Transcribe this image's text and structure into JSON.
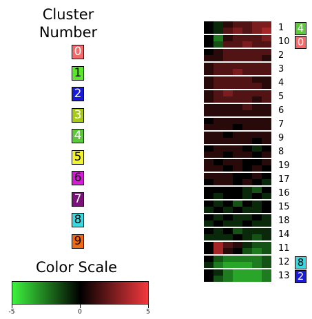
{
  "legend": {
    "title_line1": "Cluster",
    "title_line2": "Number",
    "clusters": [
      {
        "label": "0",
        "bg": "#f26a6a",
        "fg": "#ffffff"
      },
      {
        "label": "1",
        "bg": "#5ce62e",
        "fg": "#000000"
      },
      {
        "label": "2",
        "bg": "#1a1ad9",
        "fg": "#ffffff"
      },
      {
        "label": "3",
        "bg": "#a8c81a",
        "fg": "#ffffff"
      },
      {
        "label": "4",
        "bg": "#5cc83a",
        "fg": "#ffffff"
      },
      {
        "label": "5",
        "bg": "#f2f22e",
        "fg": "#000000"
      },
      {
        "label": "6",
        "bg": "#d61ad6",
        "fg": "#000000"
      },
      {
        "label": "7",
        "bg": "#7a127a",
        "fg": "#ffffff"
      },
      {
        "label": "8",
        "bg": "#3ad9e0",
        "fg": "#000000"
      },
      {
        "label": "9",
        "bg": "#f06a12",
        "fg": "#000000"
      }
    ]
  },
  "color_scale": {
    "title": "Color Scale",
    "min_label": "-5",
    "mid_label": "0",
    "max_label": "5",
    "low_color": "#3df23d",
    "mid_color": "#000000",
    "high_color": "#f2383d"
  },
  "chart_data": {
    "type": "heatmap",
    "value_range": [
      -5,
      5
    ],
    "rows": [
      {
        "label": "1",
        "cluster_badge": "4",
        "badge_bg": "#5cc83a",
        "badge_fg": "#ffffff",
        "values": [
          [
            0,
            -1,
            1,
            2,
            2,
            3,
            3
          ],
          [
            0,
            -1,
            2,
            3,
            2,
            3,
            4
          ]
        ]
      },
      {
        "label": "10",
        "cluster_badge": "0",
        "badge_bg": "#f26a6a",
        "badge_fg": "#ffffff",
        "values": [
          [
            0,
            -3,
            1,
            2,
            2,
            2,
            3
          ],
          [
            0,
            -2,
            2,
            2,
            3,
            2,
            2
          ]
        ]
      },
      {
        "label": "2",
        "values": [
          [
            0,
            1,
            2,
            2,
            2,
            2,
            2
          ],
          [
            1,
            1,
            2,
            2,
            2,
            2,
            1
          ]
        ]
      },
      {
        "label": "3",
        "values": [
          [
            1,
            2,
            2,
            2,
            2,
            2,
            2
          ],
          [
            1,
            2,
            2,
            3,
            2,
            2,
            2
          ]
        ]
      },
      {
        "label": "4",
        "values": [
          [
            1,
            2,
            2,
            2,
            2,
            1,
            1
          ],
          [
            1,
            2,
            2,
            2,
            2,
            2,
            1
          ]
        ]
      },
      {
        "label": "5",
        "values": [
          [
            1,
            2,
            3,
            2,
            2,
            2,
            2
          ],
          [
            1,
            2,
            2,
            2,
            2,
            1,
            2
          ]
        ]
      },
      {
        "label": "6",
        "values": [
          [
            1,
            1,
            1,
            1,
            2,
            1,
            1
          ],
          [
            1,
            1,
            1,
            1,
            1,
            1,
            1
          ]
        ]
      },
      {
        "label": "7",
        "values": [
          [
            0,
            1,
            1,
            1,
            1,
            1,
            1
          ],
          [
            1,
            1,
            1,
            0,
            1,
            1,
            1
          ]
        ]
      },
      {
        "label": "9",
        "values": [
          [
            1,
            1,
            0,
            1,
            1,
            1,
            1
          ],
          [
            1,
            1,
            1,
            1,
            1,
            0,
            1
          ]
        ]
      },
      {
        "label": "8",
        "values": [
          [
            0,
            1,
            1,
            1,
            0,
            -1,
            0
          ],
          [
            1,
            1,
            0,
            1,
            1,
            0,
            1
          ]
        ]
      },
      {
        "label": "19",
        "values": [
          [
            1,
            0,
            1,
            1,
            0,
            0,
            1
          ],
          [
            1,
            1,
            0,
            1,
            0,
            1,
            0
          ]
        ]
      },
      {
        "label": "17",
        "values": [
          [
            1,
            1,
            1,
            0,
            0,
            1,
            0
          ],
          [
            0,
            1,
            1,
            0,
            1,
            0,
            -1
          ]
        ]
      },
      {
        "label": "16",
        "values": [
          [
            0,
            0,
            0,
            0,
            -1,
            -2,
            0
          ],
          [
            0,
            -1,
            0,
            0,
            -1,
            0,
            -1
          ]
        ]
      },
      {
        "label": "15",
        "values": [
          [
            0,
            -1,
            0,
            -2,
            0,
            -1,
            0
          ],
          [
            -1,
            0,
            -1,
            0,
            -1,
            -1,
            0
          ]
        ]
      },
      {
        "label": "18",
        "values": [
          [
            0,
            -1,
            0,
            -1,
            -1,
            0,
            -1
          ],
          [
            -1,
            0,
            -1,
            -1,
            0,
            -1,
            -1
          ]
        ]
      },
      {
        "label": "14",
        "values": [
          [
            0,
            -1,
            0,
            -2,
            -1,
            -1,
            -1
          ],
          [
            -1,
            -1,
            -1,
            0,
            -1,
            -2,
            -1
          ]
        ]
      },
      {
        "label": "11",
        "values": [
          [
            0,
            4,
            2,
            1,
            -1,
            -2,
            -2
          ],
          [
            0,
            4,
            1,
            0,
            -2,
            -3,
            -2
          ]
        ]
      },
      {
        "label": "12",
        "cluster_badge": "8",
        "badge_bg": "#3ad9e0",
        "badge_fg": "#000000",
        "values": [
          [
            0,
            -2,
            -3,
            -3,
            -3,
            -3,
            -2
          ],
          [
            -1,
            -3,
            -4,
            -4,
            -4,
            -3,
            -2
          ]
        ]
      },
      {
        "label": "13",
        "cluster_badge": "2",
        "badge_bg": "#1a1ad9",
        "badge_fg": "#ffffff",
        "values": [
          [
            0,
            -1,
            -3,
            -4,
            -4,
            -4,
            -3
          ],
          [
            0,
            -2,
            -3,
            -4,
            -4,
            -4,
            -3
          ]
        ]
      }
    ]
  }
}
